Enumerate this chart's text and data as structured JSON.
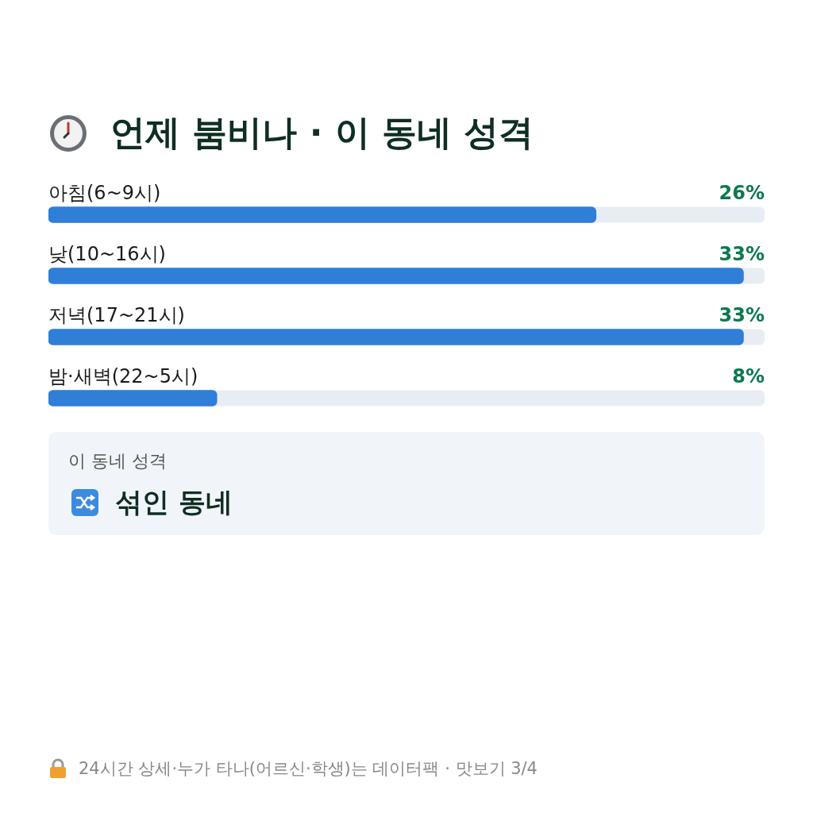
{
  "chart_data": {
    "type": "bar",
    "orientation": "horizontal",
    "title": "언제 붐비나 · 이 동네 성격",
    "categories": [
      "아침(6~9시)",
      "낮(10~16시)",
      "저녁(17~21시)",
      "밤·새벽(22~5시)"
    ],
    "values": [
      26,
      33,
      33,
      8
    ],
    "value_labels": [
      "26%",
      "33%",
      "33%",
      "8%"
    ],
    "xlim": [
      0,
      34
    ],
    "color": "#2f7ed8",
    "legend": false,
    "annotations": [
      "이 동네 성격",
      "섞인 동네",
      "24시간 상세·누가 타나(어르신·학생)는 데이터팩 · 맛보기 3/4"
    ]
  }
}
